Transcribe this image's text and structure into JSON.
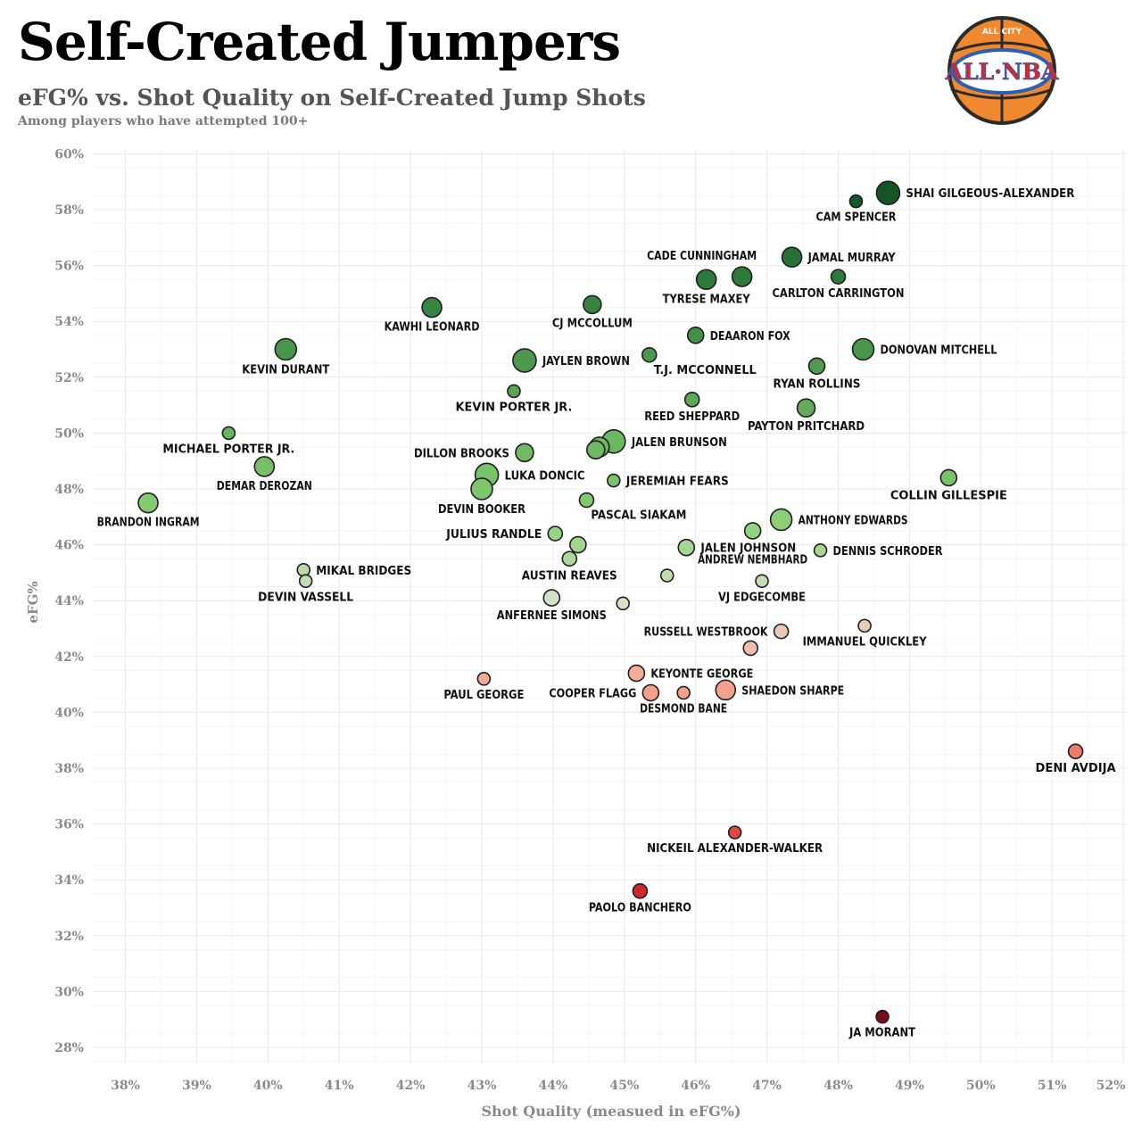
{
  "header": {
    "title": "Self-Created Jumpers",
    "subtitle": "eFG% vs. Shot Quality on Self-Created Jump Shots",
    "note": "Among players who have attempted 100+"
  },
  "logo": {
    "top_text": "ALL CITY",
    "main_text": "ALL·NBA"
  },
  "chart_data": {
    "type": "scatter",
    "xlabel": "Shot Quality (measued in eFG%)",
    "ylabel": "eFG%",
    "xlim": [
      37.6,
      52.1
    ],
    "ylim": [
      27.5,
      60.4
    ],
    "xticks": [
      38,
      39,
      40,
      41,
      42,
      43,
      44,
      45,
      46,
      47,
      48,
      49,
      50,
      51,
      52
    ],
    "yticks": [
      28,
      30,
      32,
      34,
      36,
      38,
      40,
      42,
      44,
      46,
      48,
      50,
      52,
      54,
      56,
      58,
      60
    ],
    "grid": true,
    "points": [
      {
        "name": "SHAI GILGEOUS-ALEXANDER",
        "x": 48.7,
        "y": 58.6,
        "size": 13,
        "label_pos": "right"
      },
      {
        "name": "CAM SPENCER",
        "x": 48.25,
        "y": 58.3,
        "size": 7,
        "label_pos": "below"
      },
      {
        "name": "JAMAL MURRAY",
        "x": 47.35,
        "y": 56.3,
        "size": 11,
        "label_pos": "right"
      },
      {
        "name": "CADE CUNNINGHAM",
        "x": 46.65,
        "y": 55.6,
        "size": 11,
        "label_pos": "above"
      },
      {
        "name": "TYRESE MAXEY",
        "x": 46.15,
        "y": 55.5,
        "size": 11,
        "label_pos": "below"
      },
      {
        "name": "CARLTON CARRINGTON",
        "x": 48.0,
        "y": 55.6,
        "size": 8,
        "label_pos": "below"
      },
      {
        "name": "CJ MCCOLLUM",
        "x": 44.55,
        "y": 54.6,
        "size": 10,
        "label_pos": "below"
      },
      {
        "name": "KAWHI LEONARD",
        "x": 42.3,
        "y": 54.5,
        "size": 11,
        "label_pos": "below"
      },
      {
        "name": "DEAARON FOX",
        "x": 46.0,
        "y": 53.5,
        "size": 9,
        "label_pos": "right"
      },
      {
        "name": "DONOVAN MITCHELL",
        "x": 48.35,
        "y": 53.0,
        "size": 12,
        "label_pos": "right"
      },
      {
        "name": "KEVIN DURANT",
        "x": 40.25,
        "y": 53.0,
        "size": 12,
        "label_pos": "below"
      },
      {
        "name": "JAYLEN BROWN",
        "x": 43.6,
        "y": 52.6,
        "size": 13,
        "label_pos": "right"
      },
      {
        "name": "T.J. MCCONNELL",
        "x": 45.35,
        "y": 52.8,
        "size": 8,
        "label_pos": "belowright"
      },
      {
        "name": "RYAN ROLLINS",
        "x": 47.7,
        "y": 52.4,
        "size": 9,
        "label_pos": "below"
      },
      {
        "name": "KEVIN PORTER JR.",
        "x": 43.45,
        "y": 51.5,
        "size": 7,
        "label_pos": "below"
      },
      {
        "name": "REED SHEPPARD",
        "x": 45.95,
        "y": 51.2,
        "size": 8,
        "label_pos": "below"
      },
      {
        "name": "PAYTON PRITCHARD",
        "x": 47.55,
        "y": 50.9,
        "size": 10,
        "label_pos": "below"
      },
      {
        "name": "MICHAEL PORTER JR.",
        "x": 39.45,
        "y": 50.0,
        "size": 7,
        "label_pos": "below"
      },
      {
        "name": "JALEN BRUNSON",
        "x": 44.85,
        "y": 49.7,
        "size": 13,
        "label_pos": "right"
      },
      {
        "name": "",
        "x": 44.65,
        "y": 49.5,
        "size": 11,
        "label_pos": "none"
      },
      {
        "name": "",
        "x": 44.6,
        "y": 49.4,
        "size": 10,
        "label_pos": "none"
      },
      {
        "name": "DILLON BROOKS",
        "x": 43.6,
        "y": 49.3,
        "size": 10,
        "label_pos": "left"
      },
      {
        "name": "DEMAR DEROZAN",
        "x": 39.95,
        "y": 48.8,
        "size": 11,
        "label_pos": "below"
      },
      {
        "name": "LUKA DONCIC",
        "x": 43.07,
        "y": 48.5,
        "size": 13,
        "label_pos": "right"
      },
      {
        "name": "JEREMIAH FEARS",
        "x": 44.85,
        "y": 48.3,
        "size": 7,
        "label_pos": "right"
      },
      {
        "name": "COLLIN GILLESPIE",
        "x": 49.55,
        "y": 48.4,
        "size": 9,
        "label_pos": "below"
      },
      {
        "name": "DEVIN BOOKER",
        "x": 43.0,
        "y": 48.0,
        "size": 12,
        "label_pos": "below"
      },
      {
        "name": "BRANDON INGRAM",
        "x": 38.32,
        "y": 47.5,
        "size": 11,
        "label_pos": "below"
      },
      {
        "name": "PASCAL SIAKAM",
        "x": 44.47,
        "y": 47.6,
        "size": 8,
        "label_pos": "belowright"
      },
      {
        "name": "ANTHONY EDWARDS",
        "x": 47.2,
        "y": 46.9,
        "size": 12,
        "label_pos": "right"
      },
      {
        "name": "JULIUS RANDLE",
        "x": 44.03,
        "y": 46.4,
        "size": 8,
        "label_pos": "left"
      },
      {
        "name": "",
        "x": 46.8,
        "y": 46.5,
        "size": 9,
        "label_pos": "none"
      },
      {
        "name": "",
        "x": 44.35,
        "y": 46.0,
        "size": 9,
        "label_pos": "none"
      },
      {
        "name": "JALEN JOHNSON",
        "x": 45.87,
        "y": 45.9,
        "size": 9,
        "label_pos": "right"
      },
      {
        "name": "DENNIS SCHRODER",
        "x": 47.75,
        "y": 45.8,
        "size": 7,
        "label_pos": "right"
      },
      {
        "name": "AUSTIN REAVES",
        "x": 44.23,
        "y": 45.5,
        "size": 8,
        "label_pos": "below"
      },
      {
        "name": "ANDREW NEMBHARD",
        "x": 46.8,
        "y": 45.5,
        "size": 0,
        "label_pos": "center"
      },
      {
        "name": "MIKAL BRIDGES",
        "x": 40.5,
        "y": 45.1,
        "size": 7,
        "label_pos": "right"
      },
      {
        "name": "",
        "x": 45.6,
        "y": 44.9,
        "size": 7,
        "label_pos": "none"
      },
      {
        "name": "DEVIN VASSELL",
        "x": 40.53,
        "y": 44.7,
        "size": 7,
        "label_pos": "belowleft"
      },
      {
        "name": "VJ EDGECOMBE",
        "x": 46.93,
        "y": 44.7,
        "size": 7,
        "label_pos": "below"
      },
      {
        "name": "ANFERNEE SIMONS",
        "x": 43.98,
        "y": 44.1,
        "size": 9,
        "label_pos": "below"
      },
      {
        "name": "",
        "x": 44.98,
        "y": 43.9,
        "size": 7,
        "label_pos": "none"
      },
      {
        "name": "RUSSELL WESTBROOK",
        "x": 47.2,
        "y": 42.9,
        "size": 8,
        "label_pos": "left"
      },
      {
        "name": "IMMANUEL QUICKLEY",
        "x": 48.37,
        "y": 43.1,
        "size": 7,
        "label_pos": "below"
      },
      {
        "name": "",
        "x": 46.77,
        "y": 42.3,
        "size": 8,
        "label_pos": "none"
      },
      {
        "name": "KEYONTE GEORGE",
        "x": 45.17,
        "y": 41.4,
        "size": 9,
        "label_pos": "right"
      },
      {
        "name": "PAUL GEORGE",
        "x": 43.03,
        "y": 41.2,
        "size": 7,
        "label_pos": "below"
      },
      {
        "name": "SHAEDON SHARPE",
        "x": 46.42,
        "y": 40.8,
        "size": 11,
        "label_pos": "right"
      },
      {
        "name": "COOPER FLAGG",
        "x": 45.37,
        "y": 40.7,
        "size": 9,
        "label_pos": "left"
      },
      {
        "name": "DESMOND BANE",
        "x": 45.83,
        "y": 40.7,
        "size": 7,
        "label_pos": "below"
      },
      {
        "name": "DENI AVDIJA",
        "x": 51.33,
        "y": 38.6,
        "size": 8,
        "label_pos": "below"
      },
      {
        "name": "NICKEIL ALEXANDER-WALKER",
        "x": 46.55,
        "y": 35.7,
        "size": 7,
        "label_pos": "below"
      },
      {
        "name": "PAOLO BANCHERO",
        "x": 45.22,
        "y": 33.6,
        "size": 8,
        "label_pos": "below"
      },
      {
        "name": "JA MORANT",
        "x": 48.62,
        "y": 29.1,
        "size": 7,
        "label_pos": "below"
      }
    ]
  }
}
